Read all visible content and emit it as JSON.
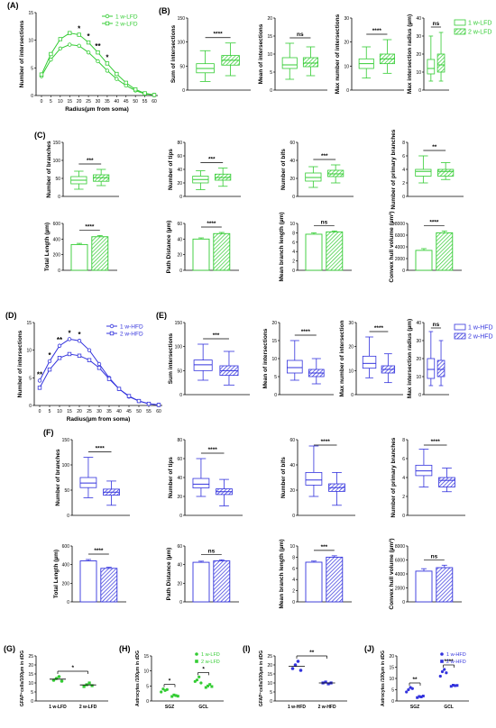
{
  "colors": {
    "green": "#33cc33",
    "green_light": "#8fe08f",
    "blue": "#3333dd",
    "blue_light": "#9a9af0",
    "black": "#000000"
  },
  "chart_data": [
    {
      "id": "A",
      "letter": "(A)",
      "type": "line",
      "xlabel": "Radius(µm from soma)",
      "ylabel": "Number of intersections",
      "x": [
        0,
        5,
        10,
        15,
        20,
        25,
        30,
        35,
        40,
        45,
        50,
        55,
        60
      ],
      "ylim": [
        0,
        15
      ],
      "yticks": [
        0,
        5,
        10,
        15
      ],
      "series": [
        {
          "name": "1 w-LFD",
          "values": [
            3.5,
            6.5,
            8.5,
            9.2,
            9.0,
            7.8,
            6.2,
            4.5,
            3.0,
            1.8,
            0.9,
            0.3,
            0.1
          ]
        },
        {
          "name": "2 w-LFD",
          "values": [
            3.8,
            7.5,
            10.2,
            11.3,
            11.0,
            9.6,
            7.8,
            5.8,
            3.9,
            2.3,
            1.1,
            0.4,
            0.1
          ]
        }
      ],
      "sig": [
        {
          "x": 20,
          "label": "*"
        },
        {
          "x": 25,
          "label": "*"
        },
        {
          "x": 30,
          "label": "**"
        },
        {
          "x": 35,
          "label": "*"
        }
      ],
      "legend_position": "top-right"
    },
    {
      "id": "B1",
      "letter": "(B)",
      "type": "box",
      "ylabel": "Sum of intersections",
      "ylim": [
        0,
        150
      ],
      "yticks": [
        0,
        50,
        100,
        150
      ],
      "sig": "****",
      "boxes": [
        {
          "min": 18,
          "q1": 36,
          "median": 45,
          "q3": 55,
          "max": 82
        },
        {
          "min": 30,
          "q1": 52,
          "median": 62,
          "q3": 72,
          "max": 98
        }
      ]
    },
    {
      "id": "B2",
      "type": "box",
      "ylabel": "Mean of intersections",
      "ylim": [
        0,
        20
      ],
      "yticks": [
        0,
        5,
        10,
        15,
        20
      ],
      "sig": "ns",
      "boxes": [
        {
          "min": 3,
          "q1": 6,
          "median": 7,
          "q3": 9,
          "max": 13
        },
        {
          "min": 4,
          "q1": 6.5,
          "median": 7.5,
          "q3": 9,
          "max": 12
        }
      ]
    },
    {
      "id": "B3",
      "type": "box",
      "ylabel": "Max number of intersections",
      "ylim": [
        0,
        30
      ],
      "yticks": [
        0,
        10,
        20,
        30
      ],
      "sig": "****",
      "boxes": [
        {
          "min": 5,
          "q1": 9,
          "median": 11,
          "q3": 13,
          "max": 18
        },
        {
          "min": 7,
          "q1": 11,
          "median": 13,
          "q3": 15,
          "max": 21
        }
      ]
    },
    {
      "id": "B4",
      "type": "box",
      "ylabel": "Max intersection radius (µm)",
      "ylim": [
        0,
        40
      ],
      "yticks": [
        0,
        10,
        20,
        30,
        40
      ],
      "sig": "ns",
      "boxes": [
        {
          "min": 5,
          "q1": 9,
          "median": 12,
          "q3": 17,
          "max": 30
        },
        {
          "min": 5,
          "q1": 10,
          "median": 14,
          "q3": 20,
          "max": 32
        }
      ],
      "legend": [
        "1 w-LFD",
        "2 w-LFD"
      ]
    },
    {
      "id": "C1",
      "letter": "(C)",
      "type": "box",
      "ylabel": "Number of branches",
      "ylim": [
        0,
        150
      ],
      "yticks": [
        0,
        50,
        100,
        150
      ],
      "sig": "***",
      "boxes": [
        {
          "min": 20,
          "q1": 35,
          "median": 45,
          "q3": 55,
          "max": 70
        },
        {
          "min": 30,
          "q1": 42,
          "median": 52,
          "q3": 60,
          "max": 75
        }
      ]
    },
    {
      "id": "C2",
      "type": "box",
      "ylabel": "Number of tips",
      "ylim": [
        0,
        80
      ],
      "yticks": [
        0,
        20,
        40,
        60,
        80
      ],
      "sig": "***",
      "boxes": [
        {
          "min": 10,
          "q1": 20,
          "median": 25,
          "q3": 30,
          "max": 38
        },
        {
          "min": 15,
          "q1": 24,
          "median": 28,
          "q3": 33,
          "max": 42
        }
      ]
    },
    {
      "id": "C3",
      "type": "box",
      "ylabel": "Number of bifs",
      "ylim": [
        0,
        60
      ],
      "yticks": [
        0,
        20,
        40,
        60
      ],
      "sig": "***",
      "boxes": [
        {
          "min": 10,
          "q1": 17,
          "median": 21,
          "q3": 26,
          "max": 33
        },
        {
          "min": 15,
          "q1": 22,
          "median": 25,
          "q3": 29,
          "max": 35
        }
      ]
    },
    {
      "id": "C4",
      "type": "box",
      "ylabel": "Number of primary branches",
      "ylim": [
        0,
        8
      ],
      "yticks": [
        0,
        2,
        4,
        6,
        8
      ],
      "sig": "**",
      "boxes": [
        {
          "min": 2,
          "q1": 3,
          "median": 3.7,
          "q3": 4,
          "max": 6
        },
        {
          "min": 2.5,
          "q1": 3,
          "median": 3.7,
          "q3": 4,
          "max": 5
        }
      ]
    },
    {
      "id": "C5",
      "type": "bar",
      "ylabel": "Total Length (µm)",
      "ylim": [
        0,
        600
      ],
      "yticks": [
        0,
        200,
        400,
        600
      ],
      "sig": "****",
      "values": [
        330,
        430
      ],
      "errors": [
        15,
        15
      ]
    },
    {
      "id": "C6",
      "type": "bar",
      "ylabel": "Path Distance (µm)",
      "ylim": [
        0,
        60
      ],
      "yticks": [
        0,
        20,
        40,
        60
      ],
      "sig": "****",
      "values": [
        40,
        47
      ],
      "errors": [
        1.5,
        1.5
      ]
    },
    {
      "id": "C7",
      "type": "bar",
      "ylabel": "Mean branch length (µm)",
      "ylim": [
        0,
        10
      ],
      "yticks": [
        0,
        2,
        4,
        6,
        8,
        10
      ],
      "sig": "ns",
      "values": [
        7.7,
        8.2
      ],
      "errors": [
        0.3,
        0.2
      ]
    },
    {
      "id": "C8",
      "type": "bar",
      "ylabel": "Convex hull volume (µm³)",
      "ylim": [
        0,
        8000
      ],
      "yticks": [
        0,
        2000,
        4000,
        6000,
        8000
      ],
      "sig": "****",
      "values": [
        3400,
        6400
      ],
      "errors": [
        300,
        300
      ]
    },
    {
      "id": "D",
      "letter": "(D)",
      "type": "line",
      "xlabel": "Radius(µm from soma)",
      "ylabel": "Number of intersections",
      "x": [
        0,
        5,
        10,
        15,
        20,
        25,
        30,
        35,
        40,
        45,
        50,
        55,
        60
      ],
      "ylim": [
        0,
        15
      ],
      "yticks": [
        0,
        5,
        10,
        15
      ],
      "series": [
        {
          "name": "1 w-HFD",
          "values": [
            4.5,
            8.0,
            10.8,
            12.0,
            11.7,
            10.0,
            7.5,
            5.0,
            3.0,
            1.6,
            0.8,
            0.3,
            0.1
          ]
        },
        {
          "name": "2 w-HFD",
          "values": [
            3.2,
            6.5,
            8.6,
            9.3,
            9.0,
            8.2,
            6.8,
            4.8,
            3.0,
            1.7,
            0.8,
            0.3,
            0.1
          ]
        }
      ],
      "sig": [
        {
          "x": 0,
          "label": "**"
        },
        {
          "x": 5,
          "label": "*"
        },
        {
          "x": 10,
          "label": "**"
        },
        {
          "x": 15,
          "label": "*"
        },
        {
          "x": 20,
          "label": "*"
        }
      ],
      "legend_position": "top-right"
    },
    {
      "id": "E1",
      "letter": "(E)",
      "type": "box",
      "ylabel": "Sum intersections",
      "ylim": [
        0,
        150
      ],
      "yticks": [
        0,
        50,
        100,
        150
      ],
      "sig": "***",
      "boxes": [
        {
          "min": 30,
          "q1": 50,
          "median": 62,
          "q3": 72,
          "max": 105
        },
        {
          "min": 20,
          "q1": 40,
          "median": 50,
          "q3": 60,
          "max": 90
        }
      ]
    },
    {
      "id": "E2",
      "type": "box",
      "ylabel": "Mean of intersections",
      "ylim": [
        0,
        20
      ],
      "yticks": [
        0,
        5,
        10,
        15,
        20
      ],
      "sig": "****",
      "boxes": [
        {
          "min": 4,
          "q1": 6,
          "median": 7.5,
          "q3": 9.5,
          "max": 15
        },
        {
          "min": 3,
          "q1": 5,
          "median": 6,
          "q3": 7,
          "max": 10
        }
      ]
    },
    {
      "id": "E3",
      "type": "box",
      "ylabel": "Max number of intersection",
      "ylim": [
        0,
        30
      ],
      "yticks": [
        0,
        10,
        20,
        30
      ],
      "sig": "****",
      "boxes": [
        {
          "min": 7,
          "q1": 11,
          "median": 13,
          "q3": 16,
          "max": 24
        },
        {
          "min": 5,
          "q1": 9,
          "median": 10.5,
          "q3": 12,
          "max": 17
        }
      ]
    },
    {
      "id": "E4",
      "type": "box",
      "ylabel": "Max intersection radius (µm)",
      "ylim": [
        0,
        40
      ],
      "yticks": [
        0,
        10,
        20,
        30,
        40
      ],
      "sig": "ns",
      "boxes": [
        {
          "min": 5,
          "q1": 9,
          "median": 14,
          "q3": 20,
          "max": 35
        },
        {
          "min": 5,
          "q1": 10,
          "median": 14,
          "q3": 19,
          "max": 30
        }
      ],
      "legend": [
        "1 w-HFD",
        "2 w-HFD"
      ]
    },
    {
      "id": "F1",
      "letter": "(F)",
      "type": "box",
      "ylabel": "Number of branches",
      "ylim": [
        0,
        150
      ],
      "yticks": [
        0,
        50,
        100,
        150
      ],
      "sig": "****",
      "boxes": [
        {
          "min": 35,
          "q1": 55,
          "median": 64,
          "q3": 75,
          "max": 115
        },
        {
          "min": 20,
          "q1": 40,
          "median": 46,
          "q3": 52,
          "max": 68
        }
      ]
    },
    {
      "id": "F2",
      "type": "box",
      "ylabel": "Number of tips",
      "ylim": [
        0,
        80
      ],
      "yticks": [
        0,
        20,
        40,
        60,
        80
      ],
      "sig": "****",
      "boxes": [
        {
          "min": 20,
          "q1": 29,
          "median": 33,
          "q3": 39,
          "max": 60
        },
        {
          "min": 10,
          "q1": 22,
          "median": 25,
          "q3": 28,
          "max": 38
        }
      ]
    },
    {
      "id": "F3",
      "type": "box",
      "ylabel": "Number of bifs",
      "ylim": [
        0,
        60
      ],
      "yticks": [
        0,
        20,
        40,
        60
      ],
      "sig": "****",
      "boxes": [
        {
          "min": 15,
          "q1": 24,
          "median": 28,
          "q3": 34,
          "max": 55
        },
        {
          "min": 8,
          "q1": 19,
          "median": 22,
          "q3": 25,
          "max": 34
        }
      ]
    },
    {
      "id": "F4",
      "type": "box",
      "ylabel": "Number of primary branches",
      "ylim": [
        0,
        8
      ],
      "yticks": [
        0,
        2,
        4,
        6,
        8
      ],
      "sig": "****",
      "boxes": [
        {
          "min": 3,
          "q1": 4.2,
          "median": 4.7,
          "q3": 5.3,
          "max": 7
        },
        {
          "min": 2.5,
          "q1": 3,
          "median": 3.7,
          "q3": 4,
          "max": 5
        }
      ]
    },
    {
      "id": "F5",
      "type": "bar",
      "ylabel": "Total Length (µm)",
      "ylim": [
        0,
        600
      ],
      "yticks": [
        0,
        200,
        400,
        600
      ],
      "sig": "****",
      "values": [
        440,
        360
      ],
      "errors": [
        15,
        12
      ]
    },
    {
      "id": "F6",
      "type": "bar",
      "ylabel": "Path Distance (µm)",
      "ylim": [
        0,
        60
      ],
      "yticks": [
        0,
        20,
        40,
        60
      ],
      "sig": "ns",
      "values": [
        42.5,
        44
      ],
      "errors": [
        1.2,
        1.2
      ]
    },
    {
      "id": "F7",
      "type": "bar",
      "ylabel": "Mean branch length (µm)",
      "ylim": [
        0,
        10
      ],
      "yticks": [
        0,
        2,
        4,
        6,
        8,
        10
      ],
      "sig": "***",
      "values": [
        7.1,
        8.0
      ],
      "errors": [
        0.2,
        0.25
      ]
    },
    {
      "id": "F8",
      "type": "bar",
      "ylabel": "Convex hull volume (µm³)",
      "ylim": [
        0,
        8000
      ],
      "yticks": [
        0,
        2000,
        4000,
        6000,
        8000
      ],
      "sig": "ns",
      "values": [
        4400,
        4900
      ],
      "errors": [
        350,
        350
      ]
    },
    {
      "id": "G",
      "letter": "(G)",
      "type": "scatter",
      "ylabel": "GFAP⁺cells/100µm in dDG",
      "ylim": [
        0,
        25
      ],
      "yticks": [
        0,
        5,
        10,
        15,
        20,
        25
      ],
      "categories": [
        "1 w-LFD",
        "2 w-LFD"
      ],
      "points": [
        [
          11.5,
          12.5,
          13.5,
          11
        ],
        [
          8,
          9,
          10,
          8.5
        ]
      ],
      "means": [
        12.1,
        8.9
      ],
      "sig": "*"
    },
    {
      "id": "H",
      "letter": "(H)",
      "type": "scatter",
      "ylabel": "Astrocytes /100µm in dDG",
      "ylim": [
        0,
        15
      ],
      "yticks": [
        0,
        5,
        10,
        15
      ],
      "categories": [
        "SGZ",
        "GCL"
      ],
      "legend": [
        "1 w-LFD",
        "2 w-LFD"
      ],
      "groups": [
        {
          "points1": [
            3,
            4,
            3.5,
            3.8
          ],
          "points2": [
            1.5,
            2,
            1.8,
            1.6
          ],
          "sig": "*"
        },
        {
          "points1": [
            6.5,
            7,
            8,
            6
          ],
          "points2": [
            4.5,
            5,
            5.5,
            4.8
          ],
          "sig": "*"
        }
      ]
    },
    {
      "id": "I",
      "letter": "(I)",
      "type": "scatter",
      "ylabel": "GFAP⁺cells/100µm in dDG",
      "ylim": [
        0,
        25
      ],
      "yticks": [
        0,
        5,
        10,
        15,
        20,
        25
      ],
      "categories": [
        "1 w-HFD",
        "2 w-HFD"
      ],
      "points": [
        [
          18,
          20,
          22,
          17
        ],
        [
          10,
          10.5,
          9.5,
          10
        ]
      ],
      "means": [
        19.2,
        10
      ],
      "sig": "**"
    },
    {
      "id": "J",
      "letter": "(J)",
      "type": "scatter",
      "ylabel": "Astrocytes /100µm in dDG",
      "ylim": [
        0,
        20
      ],
      "yticks": [
        0,
        5,
        10,
        15,
        20
      ],
      "categories": [
        "SGZ",
        "GCL"
      ],
      "legend": [
        "1 w-HFD",
        "2 w-HFD"
      ],
      "groups": [
        {
          "points1": [
            4,
            5,
            6,
            5.5
          ],
          "points2": [
            1.5,
            2,
            1.8,
            2.2
          ],
          "sig": "**"
        },
        {
          "points1": [
            11,
            13,
            14,
            12.5
          ],
          "points2": [
            6.5,
            7,
            6.8,
            6.9
          ],
          "sig": "****"
        }
      ]
    }
  ]
}
